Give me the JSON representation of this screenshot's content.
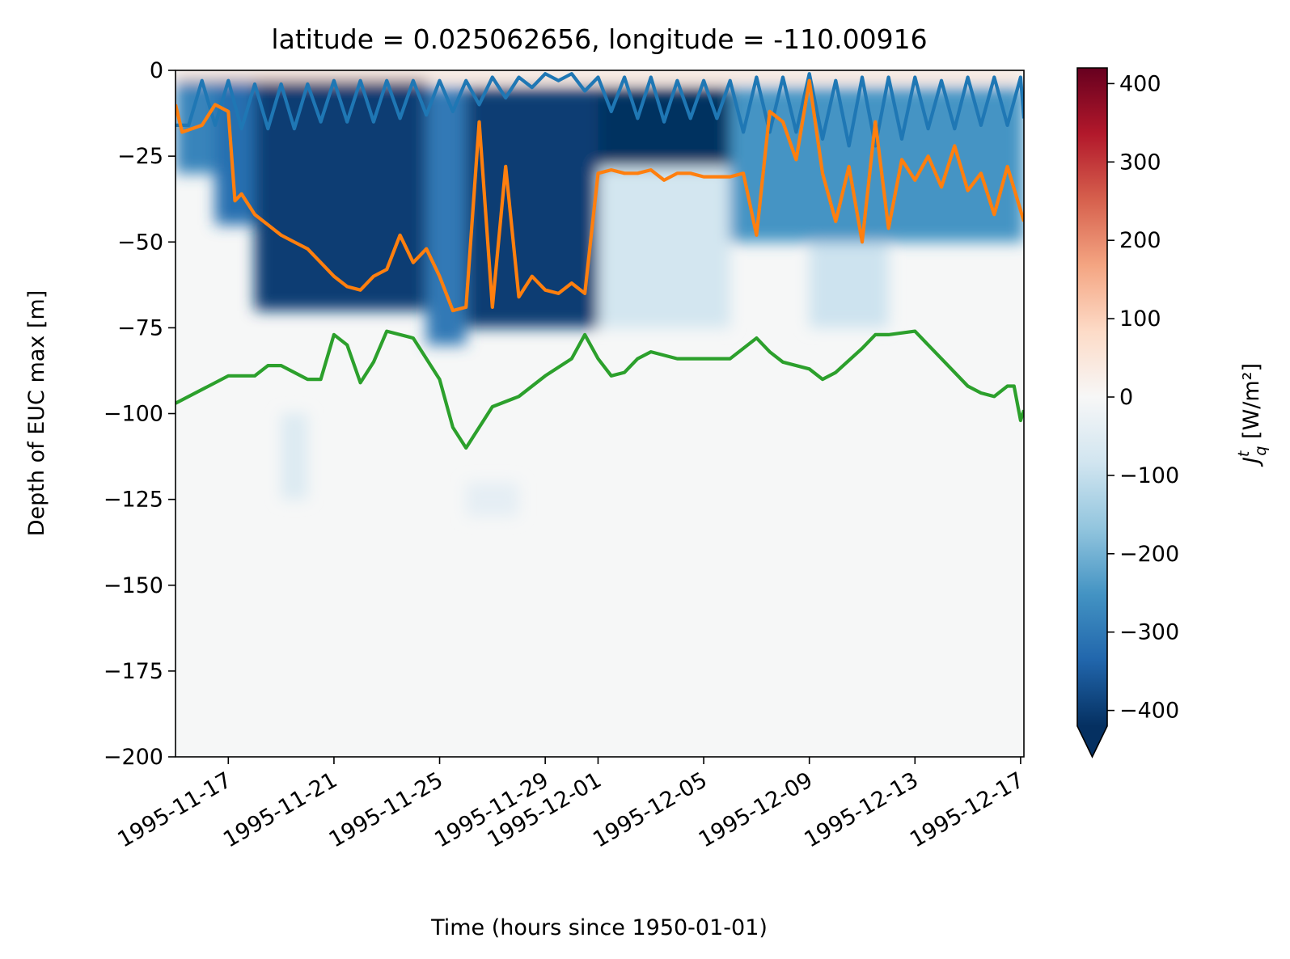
{
  "chart_data": {
    "type": "heatmap",
    "title": "latitude = 0.025062656, longitude = -110.00916",
    "xlabel": "Time (hours since 1950-01-01)",
    "ylabel": "Depth of EUC max [m]",
    "x_range": [
      "1995-11-15T00:00",
      "1995-12-17T03:00"
    ],
    "ylim": [
      -200,
      0
    ],
    "x_ticks": [
      "1995-11-17",
      "1995-11-21",
      "1995-11-25",
      "1995-11-29",
      "1995-12-01",
      "1995-12-05",
      "1995-12-09",
      "1995-12-13",
      "1995-12-17"
    ],
    "y_ticks": [
      "0",
      "−25",
      "−50",
      "−75",
      "−100",
      "−125",
      "−150",
      "−175",
      "−200"
    ],
    "y_tick_values": [
      0,
      -25,
      -50,
      -75,
      -100,
      -125,
      -150,
      -175,
      -200
    ],
    "grid": false,
    "colorbar": {
      "label_main": "J",
      "label_sup": "t",
      "label_sub": "q",
      "label_units": " [W/m²]",
      "range": [
        -420,
        420
      ],
      "extend": "min",
      "ticks": [
        "400",
        "300",
        "200",
        "100",
        "0",
        "−100",
        "−200",
        "−300",
        "−400"
      ],
      "tick_values": [
        400,
        300,
        200,
        100,
        0,
        -100,
        -200,
        -300,
        -400
      ],
      "colormap": "RdBu_r",
      "stops": [
        "#053061",
        "#2166ac",
        "#4393c3",
        "#92c5de",
        "#d1e5f0",
        "#f7f7f7",
        "#fddbc7",
        "#f4a582",
        "#d6604d",
        "#b2182b",
        "#67001f"
      ]
    },
    "heatmap_regions": [
      {
        "start": "1995-11-15",
        "end": "1995-11-16T12:00",
        "top": -2,
        "bottom": -30,
        "value": -280
      },
      {
        "start": "1995-11-16T12:00",
        "end": "1995-11-18",
        "top": -2,
        "bottom": -45,
        "value": -320
      },
      {
        "start": "1995-11-18",
        "end": "1995-11-24T12:00",
        "top": -2,
        "bottom": -70,
        "value": -400
      },
      {
        "start": "1995-11-24T12:00",
        "end": "1995-11-26",
        "top": -5,
        "bottom": -80,
        "value": -300
      },
      {
        "start": "1995-11-26",
        "end": "1995-12-01",
        "top": -5,
        "bottom": -75,
        "value": -400
      },
      {
        "start": "1995-12-01",
        "end": "1995-12-06",
        "top": -5,
        "bottom": -28,
        "value": -420
      },
      {
        "start": "1995-12-01",
        "end": "1995-12-06",
        "top": -28,
        "bottom": -75,
        "value": -80
      },
      {
        "start": "1995-12-06",
        "end": "1995-12-17T03:00",
        "top": -5,
        "bottom": -50,
        "value": -250
      },
      {
        "start": "1995-12-09",
        "end": "1995-12-12",
        "top": -50,
        "bottom": -75,
        "value": -90
      },
      {
        "start": "1995-11-15",
        "end": "1995-12-17T03:00",
        "top": 0,
        "bottom": -3,
        "value": 60
      },
      {
        "start": "1995-11-19",
        "end": "1995-11-20",
        "top": -100,
        "bottom": -125,
        "value": -60
      },
      {
        "start": "1995-11-26",
        "end": "1995-11-28",
        "top": -120,
        "bottom": -130,
        "value": -40
      }
    ],
    "series": [
      {
        "color": "#1f77b4",
        "x": [
          "1995-11-15T00:00",
          "1995-11-15T12:00",
          "1995-11-16T00:00",
          "1995-11-16T12:00",
          "1995-11-17T00:00",
          "1995-11-17T12:00",
          "1995-11-18T00:00",
          "1995-11-18T12:00",
          "1995-11-19T00:00",
          "1995-11-19T12:00",
          "1995-11-20T00:00",
          "1995-11-20T12:00",
          "1995-11-21T00:00",
          "1995-11-21T12:00",
          "1995-11-22T00:00",
          "1995-11-22T12:00",
          "1995-11-23T00:00",
          "1995-11-23T12:00",
          "1995-11-24T00:00",
          "1995-11-24T12:00",
          "1995-11-25T00:00",
          "1995-11-25T12:00",
          "1995-11-26T00:00",
          "1995-11-26T12:00",
          "1995-11-27T00:00",
          "1995-11-27T12:00",
          "1995-11-28T00:00",
          "1995-11-28T12:00",
          "1995-11-29T00:00",
          "1995-11-29T12:00",
          "1995-11-30T00:00",
          "1995-11-30T12:00",
          "1995-12-01T00:00",
          "1995-12-01T12:00",
          "1995-12-02T00:00",
          "1995-12-02T12:00",
          "1995-12-03T00:00",
          "1995-12-03T12:00",
          "1995-12-04T00:00",
          "1995-12-04T12:00",
          "1995-12-05T00:00",
          "1995-12-05T12:00",
          "1995-12-06T00:00",
          "1995-12-06T12:00",
          "1995-12-07T00:00",
          "1995-12-07T12:00",
          "1995-12-08T00:00",
          "1995-12-08T12:00",
          "1995-12-09T00:00",
          "1995-12-09T12:00",
          "1995-12-10T00:00",
          "1995-12-10T12:00",
          "1995-12-11T00:00",
          "1995-12-11T12:00",
          "1995-12-12T00:00",
          "1995-12-12T12:00",
          "1995-12-13T00:00",
          "1995-12-13T12:00",
          "1995-12-14T00:00",
          "1995-12-14T12:00",
          "1995-12-15T00:00",
          "1995-12-15T12:00",
          "1995-12-16T00:00",
          "1995-12-16T12:00",
          "1995-12-17T00:00",
          "1995-12-17T03:00"
        ],
        "y": [
          -16,
          -16,
          -3,
          -16,
          -3,
          -17,
          -4,
          -17,
          -4,
          -17,
          -4,
          -15,
          -3,
          -15,
          -3,
          -15,
          -3,
          -14,
          -3,
          -13,
          -3,
          -12,
          -3,
          -10,
          -2,
          -8,
          -2,
          -5,
          -1,
          -3,
          -1,
          -6,
          -2,
          -12,
          -2,
          -14,
          -2,
          -15,
          -3,
          -14,
          -3,
          -14,
          -3,
          -18,
          -2,
          -18,
          -2,
          -18,
          -1,
          -20,
          -3,
          -22,
          -2,
          -22,
          -2,
          -20,
          -2,
          -17,
          -3,
          -17,
          -2,
          -16,
          -2,
          -16,
          -2,
          -14
        ]
      },
      {
        "color": "#ff7f0e",
        "x": [
          "1995-11-15T00:00",
          "1995-11-15T06:00",
          "1995-11-16T00:00",
          "1995-11-16T12:00",
          "1995-11-17T00:00",
          "1995-11-17T06:00",
          "1995-11-17T12:00",
          "1995-11-18T00:00",
          "1995-11-18T12:00",
          "1995-11-19T00:00",
          "1995-11-19T12:00",
          "1995-11-20T00:00",
          "1995-11-20T12:00",
          "1995-11-21T00:00",
          "1995-11-21T12:00",
          "1995-11-22T00:00",
          "1995-11-22T12:00",
          "1995-11-23T00:00",
          "1995-11-23T12:00",
          "1995-11-24T00:00",
          "1995-11-24T12:00",
          "1995-11-25T00:00",
          "1995-11-25T12:00",
          "1995-11-26T00:00",
          "1995-11-26T12:00",
          "1995-11-27T00:00",
          "1995-11-27T12:00",
          "1995-11-28T00:00",
          "1995-11-28T12:00",
          "1995-11-29T00:00",
          "1995-11-29T12:00",
          "1995-11-30T00:00",
          "1995-11-30T12:00",
          "1995-12-01T00:00",
          "1995-12-01T12:00",
          "1995-12-02T00:00",
          "1995-12-02T12:00",
          "1995-12-03T00:00",
          "1995-12-03T12:00",
          "1995-12-04T00:00",
          "1995-12-04T12:00",
          "1995-12-05T00:00",
          "1995-12-05T12:00",
          "1995-12-06T00:00",
          "1995-12-06T12:00",
          "1995-12-07T00:00",
          "1995-12-07T12:00",
          "1995-12-08T00:00",
          "1995-12-08T12:00",
          "1995-12-09T00:00",
          "1995-12-09T12:00",
          "1995-12-10T00:00",
          "1995-12-10T12:00",
          "1995-12-11T00:00",
          "1995-12-11T12:00",
          "1995-12-12T00:00",
          "1995-12-12T12:00",
          "1995-12-13T00:00",
          "1995-12-13T12:00",
          "1995-12-14T00:00",
          "1995-12-14T12:00",
          "1995-12-15T00:00",
          "1995-12-15T12:00",
          "1995-12-16T00:00",
          "1995-12-16T12:00",
          "1995-12-17T03:00"
        ],
        "y": [
          -10,
          -18,
          -16,
          -10,
          -12,
          -38,
          -36,
          -42,
          -45,
          -48,
          -50,
          -52,
          -56,
          -60,
          -63,
          -64,
          -60,
          -58,
          -48,
          -56,
          -52,
          -60,
          -70,
          -69,
          -15,
          -69,
          -28,
          -66,
          -60,
          -64,
          -65,
          -62,
          -65,
          -30,
          -29,
          -30,
          -30,
          -29,
          -32,
          -30,
          -30,
          -31,
          -31,
          -31,
          -30,
          -48,
          -12,
          -15,
          -26,
          -3,
          -30,
          -44,
          -28,
          -50,
          -15,
          -46,
          -26,
          -32,
          -25,
          -34,
          -22,
          -35,
          -30,
          -42,
          -28,
          -44
        ]
      },
      {
        "color": "#2ca02c",
        "x": [
          "1995-11-15T00:00",
          "1995-11-16T00:00",
          "1995-11-17T00:00",
          "1995-11-18T00:00",
          "1995-11-18T12:00",
          "1995-11-19T00:00",
          "1995-11-20T00:00",
          "1995-11-20T12:00",
          "1995-11-21T00:00",
          "1995-11-21T12:00",
          "1995-11-22T00:00",
          "1995-11-22T12:00",
          "1995-11-23T00:00",
          "1995-11-24T00:00",
          "1995-11-25T00:00",
          "1995-11-25T12:00",
          "1995-11-26T00:00",
          "1995-11-26T12:00",
          "1995-11-27T00:00",
          "1995-11-28T00:00",
          "1995-11-29T00:00",
          "1995-11-30T00:00",
          "1995-11-30T12:00",
          "1995-12-01T00:00",
          "1995-12-01T12:00",
          "1995-12-02T00:00",
          "1995-12-02T12:00",
          "1995-12-03T00:00",
          "1995-12-04T00:00",
          "1995-12-05T00:00",
          "1995-12-06T00:00",
          "1995-12-07T00:00",
          "1995-12-07T12:00",
          "1995-12-08T00:00",
          "1995-12-09T00:00",
          "1995-12-09T12:00",
          "1995-12-10T00:00",
          "1995-12-11T00:00",
          "1995-12-11T12:00",
          "1995-12-12T00:00",
          "1995-12-13T00:00",
          "1995-12-13T12:00",
          "1995-12-14T00:00",
          "1995-12-15T00:00",
          "1995-12-15T12:00",
          "1995-12-16T00:00",
          "1995-12-16T12:00",
          "1995-12-16T18:00",
          "1995-12-17T00:00",
          "1995-12-17T03:00"
        ],
        "y": [
          -97,
          -93,
          -89,
          -89,
          -86,
          -86,
          -90,
          -90,
          -77,
          -80,
          -91,
          -85,
          -76,
          -78,
          -90,
          -104,
          -110,
          -104,
          -98,
          -95,
          -89,
          -84,
          -77,
          -84,
          -89,
          -88,
          -84,
          -82,
          -84,
          -84,
          -84,
          -78,
          -82,
          -85,
          -87,
          -90,
          -88,
          -81,
          -77,
          -77,
          -76,
          -80,
          -84,
          -92,
          -94,
          -95,
          -92,
          -92,
          -102,
          -99
        ]
      }
    ]
  }
}
